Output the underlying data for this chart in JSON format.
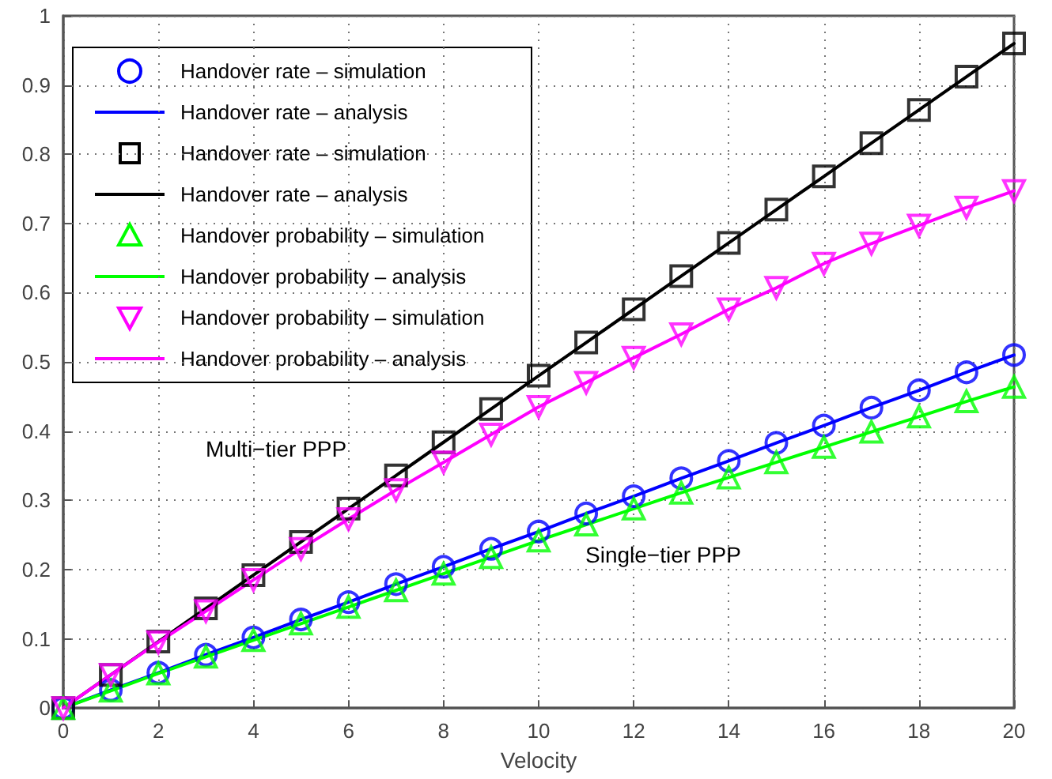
{
  "chart_data": {
    "type": "line",
    "xlabel": "Velocity",
    "x": [
      0,
      1,
      2,
      3,
      4,
      5,
      6,
      7,
      8,
      9,
      10,
      11,
      12,
      13,
      14,
      15,
      16,
      17,
      18,
      19,
      20
    ],
    "xlim": [
      0,
      20
    ],
    "xticks": [
      0,
      2,
      4,
      6,
      8,
      10,
      12,
      14,
      16,
      18,
      20
    ],
    "ylim": [
      0,
      1
    ],
    "yticks": [
      0,
      0.1,
      0.2,
      0.3,
      0.4,
      0.5,
      0.6,
      0.7,
      0.8,
      0.9,
      1
    ],
    "grid": true,
    "legend": "top left",
    "series": [
      {
        "name": "Handover rate – simulation",
        "type": "scatter",
        "marker": "circle",
        "color": "#0000ff",
        "values": [
          0,
          0.026,
          0.051,
          0.077,
          0.102,
          0.128,
          0.153,
          0.179,
          0.204,
          0.23,
          0.255,
          0.281,
          0.306,
          0.332,
          0.357,
          0.383,
          0.408,
          0.434,
          0.459,
          0.485,
          0.51
        ]
      },
      {
        "name": "Handover rate – analysis",
        "type": "line",
        "marker": "none",
        "line_style": "solid",
        "color": "#0000ff",
        "values": [
          0,
          0.026,
          0.051,
          0.077,
          0.102,
          0.128,
          0.153,
          0.179,
          0.204,
          0.23,
          0.255,
          0.281,
          0.306,
          0.332,
          0.357,
          0.383,
          0.408,
          0.434,
          0.459,
          0.485,
          0.51
        ]
      },
      {
        "name": "Handover rate – simulation",
        "type": "scatter",
        "marker": "square",
        "color": "#000000",
        "values": [
          0,
          0.048,
          0.096,
          0.144,
          0.192,
          0.24,
          0.288,
          0.336,
          0.384,
          0.432,
          0.48,
          0.528,
          0.576,
          0.624,
          0.672,
          0.72,
          0.768,
          0.816,
          0.864,
          0.912,
          0.96
        ]
      },
      {
        "name": "Handover rate – analysis",
        "type": "line",
        "marker": "none",
        "line_style": "solid",
        "color": "#000000",
        "values": [
          0,
          0.048,
          0.096,
          0.144,
          0.192,
          0.24,
          0.288,
          0.336,
          0.384,
          0.432,
          0.48,
          0.528,
          0.576,
          0.624,
          0.672,
          0.72,
          0.768,
          0.816,
          0.864,
          0.912,
          0.96
        ]
      },
      {
        "name": "Handover probability – simulation",
        "type": "scatter",
        "marker": "triangle",
        "color": "#00ff00",
        "values": [
          0,
          0.025,
          0.05,
          0.074,
          0.098,
          0.122,
          0.146,
          0.17,
          0.194,
          0.218,
          0.242,
          0.265,
          0.288,
          0.311,
          0.333,
          0.355,
          0.377,
          0.399,
          0.421,
          0.443,
          0.464
        ]
      },
      {
        "name": "Handover probability – analysis",
        "type": "line",
        "marker": "none",
        "line_style": "solid",
        "color": "#00ff00",
        "values": [
          0,
          0.025,
          0.05,
          0.074,
          0.098,
          0.122,
          0.146,
          0.17,
          0.194,
          0.218,
          0.242,
          0.265,
          0.288,
          0.311,
          0.333,
          0.355,
          0.377,
          0.399,
          0.421,
          0.443,
          0.464
        ]
      },
      {
        "name": "Handover probability – simulation",
        "type": "scatter",
        "marker": "triangle_down",
        "color": "#ff00ff",
        "values": [
          0,
          0.048,
          0.095,
          0.14,
          0.185,
          0.23,
          0.273,
          0.315,
          0.355,
          0.395,
          0.435,
          0.47,
          0.506,
          0.54,
          0.576,
          0.607,
          0.642,
          0.671,
          0.697,
          0.723,
          0.747
        ]
      },
      {
        "name": "Handover probability – analysis",
        "type": "line",
        "marker": "none",
        "line_style": "solid",
        "color": "#ff00ff",
        "values": [
          0,
          0.048,
          0.095,
          0.14,
          0.185,
          0.23,
          0.273,
          0.315,
          0.355,
          0.395,
          0.435,
          0.47,
          0.506,
          0.54,
          0.576,
          0.607,
          0.642,
          0.671,
          0.697,
          0.723,
          0.747
        ]
      }
    ],
    "annotations": [
      "Multi−tier PPP",
      "Single−tier PPP"
    ]
  }
}
